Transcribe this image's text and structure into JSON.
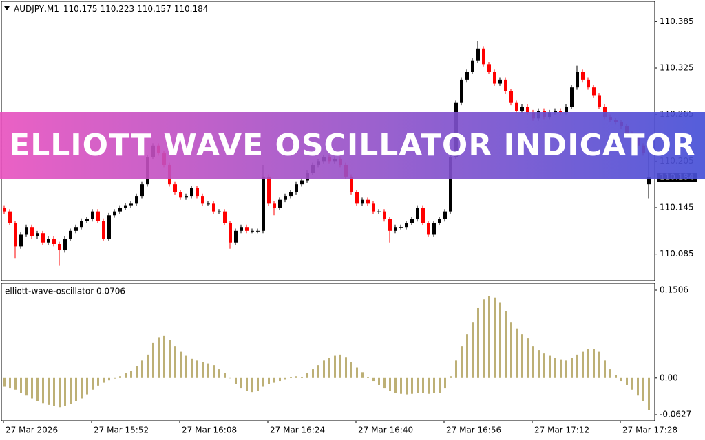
{
  "chart_data": [
    {
      "type": "candlestick",
      "title": "AUDJPY,M1",
      "open": [
        110.145,
        110.14,
        110.125,
        110.095,
        110.11,
        110.12,
        110.108,
        110.112,
        110.1,
        110.105,
        110.098,
        110.09,
        110.105,
        110.115,
        110.12,
        110.128,
        110.13,
        110.14,
        110.128,
        110.105,
        110.135,
        110.14,
        110.145,
        110.148,
        110.15,
        110.16,
        110.175,
        110.21,
        110.225,
        110.215,
        110.2,
        110.175,
        110.165,
        110.158,
        110.16,
        110.17,
        110.16,
        110.15,
        110.15,
        110.14,
        110.14,
        110.125,
        110.1,
        110.115,
        110.12,
        110.115,
        110.115,
        110.115,
        110.185,
        110.15,
        110.145,
        110.155,
        110.16,
        110.165,
        110.175,
        110.18,
        110.19,
        110.2,
        110.205,
        110.21,
        110.205,
        110.208,
        110.2,
        110.185,
        110.165,
        110.15,
        110.155,
        110.15,
        110.14,
        110.14,
        110.13,
        110.115,
        110.12,
        110.12,
        110.125,
        110.13,
        110.145,
        110.125,
        110.11,
        110.125,
        110.13,
        110.14,
        110.21,
        110.28,
        110.31,
        110.32,
        110.335,
        110.35,
        110.33,
        110.32,
        110.305,
        110.31,
        110.295,
        110.28,
        110.27,
        110.275,
        110.268,
        110.26,
        110.27,
        110.262,
        110.268,
        110.27,
        110.268,
        110.275,
        110.3,
        110.32,
        110.31,
        110.3,
        110.29,
        110.275,
        110.262,
        110.258,
        110.255,
        110.25,
        110.24,
        110.235,
        110.225,
        110.175
      ],
      "high": [
        110.148,
        110.143,
        110.128,
        110.113,
        110.123,
        110.123,
        110.115,
        110.115,
        110.108,
        110.108,
        110.101,
        110.108,
        110.118,
        110.123,
        110.131,
        110.133,
        110.143,
        110.143,
        110.131,
        110.138,
        110.143,
        110.148,
        110.151,
        110.153,
        110.163,
        110.178,
        110.213,
        110.228,
        110.228,
        110.218,
        110.203,
        110.178,
        110.168,
        110.163,
        110.173,
        110.173,
        110.163,
        110.153,
        110.153,
        110.143,
        110.143,
        110.128,
        110.118,
        110.123,
        110.123,
        110.118,
        110.118,
        110.2,
        110.188,
        110.153,
        110.158,
        110.163,
        110.168,
        110.178,
        110.183,
        110.193,
        110.203,
        110.208,
        110.213,
        110.213,
        110.211,
        110.211,
        110.203,
        110.188,
        110.168,
        110.158,
        110.158,
        110.153,
        110.143,
        110.143,
        110.133,
        110.123,
        110.123,
        110.128,
        110.133,
        110.148,
        110.148,
        110.128,
        110.128,
        110.133,
        110.143,
        110.213,
        110.283,
        110.313,
        110.323,
        110.338,
        110.36,
        110.353,
        110.333,
        110.323,
        110.313,
        110.313,
        110.298,
        110.283,
        110.278,
        110.278,
        110.271,
        110.273,
        110.273,
        110.271,
        110.273,
        110.273,
        110.278,
        110.303,
        110.328,
        110.323,
        110.313,
        110.303,
        110.293,
        110.278,
        110.265,
        110.261,
        110.258,
        110.253,
        110.243,
        110.238,
        110.228,
        110.223
      ],
      "low": [
        110.137,
        110.122,
        110.08,
        110.092,
        110.107,
        110.105,
        110.105,
        110.097,
        110.097,
        110.095,
        110.07,
        110.087,
        110.102,
        110.112,
        110.117,
        110.125,
        110.127,
        110.125,
        110.102,
        110.102,
        110.132,
        110.137,
        110.142,
        110.145,
        110.147,
        110.157,
        110.172,
        110.207,
        110.212,
        110.197,
        110.172,
        110.162,
        110.155,
        110.155,
        110.157,
        110.157,
        110.147,
        110.147,
        110.137,
        110.137,
        110.122,
        110.092,
        110.097,
        110.112,
        110.112,
        110.112,
        110.112,
        110.112,
        110.147,
        110.135,
        110.142,
        110.152,
        110.157,
        110.162,
        110.172,
        110.177,
        110.187,
        110.197,
        110.202,
        110.202,
        110.202,
        110.197,
        110.182,
        110.162,
        110.147,
        110.147,
        110.147,
        110.137,
        110.137,
        110.127,
        110.1,
        110.112,
        110.117,
        110.117,
        110.122,
        110.127,
        110.122,
        110.107,
        110.107,
        110.122,
        110.127,
        110.137,
        110.207,
        110.277,
        110.307,
        110.317,
        110.332,
        110.327,
        110.317,
        110.302,
        110.302,
        110.292,
        110.277,
        110.267,
        110.267,
        110.265,
        110.257,
        110.257,
        110.259,
        110.259,
        110.265,
        110.265,
        110.265,
        110.272,
        110.297,
        110.307,
        110.297,
        110.287,
        110.272,
        110.259,
        110.255,
        110.252,
        110.247,
        110.237,
        110.232,
        110.222,
        110.212,
        110.157
      ],
      "close": [
        110.14,
        110.125,
        110.095,
        110.11,
        110.12,
        110.108,
        110.112,
        110.1,
        110.105,
        110.098,
        110.09,
        110.105,
        110.115,
        110.12,
        110.128,
        110.13,
        110.14,
        110.128,
        110.105,
        110.135,
        110.14,
        110.145,
        110.148,
        110.15,
        110.16,
        110.175,
        110.21,
        110.225,
        110.215,
        110.2,
        110.175,
        110.165,
        110.158,
        110.16,
        110.17,
        110.16,
        110.15,
        110.15,
        110.14,
        110.14,
        110.125,
        110.1,
        110.115,
        110.12,
        110.115,
        110.115,
        110.115,
        110.185,
        110.15,
        110.145,
        110.155,
        110.16,
        110.165,
        110.175,
        110.18,
        110.19,
        110.2,
        110.205,
        110.21,
        110.205,
        110.208,
        110.2,
        110.185,
        110.165,
        110.15,
        110.155,
        110.15,
        110.14,
        110.14,
        110.13,
        110.115,
        110.12,
        110.12,
        110.125,
        110.13,
        110.145,
        110.125,
        110.11,
        110.125,
        110.13,
        110.14,
        110.21,
        110.28,
        110.31,
        110.32,
        110.335,
        110.35,
        110.33,
        110.32,
        110.305,
        110.31,
        110.295,
        110.28,
        110.27,
        110.275,
        110.268,
        110.26,
        110.27,
        110.262,
        110.268,
        110.27,
        110.268,
        110.275,
        110.3,
        110.32,
        110.31,
        110.3,
        110.29,
        110.275,
        110.262,
        110.258,
        110.255,
        110.25,
        110.24,
        110.235,
        110.225,
        110.215,
        110.184
      ],
      "up_color": "#000000",
      "down_color": "#ff0000",
      "ylim": [
        110.051,
        110.411
      ],
      "yticks": [
        110.385,
        110.325,
        110.265,
        110.205,
        110.145,
        110.085
      ]
    },
    {
      "type": "bar",
      "title": "elliott-wave-oscillator 0.0706",
      "color": "#bdb076",
      "values": [
        -0.015,
        -0.018,
        -0.02,
        -0.025,
        -0.03,
        -0.035,
        -0.04,
        -0.043,
        -0.046,
        -0.048,
        -0.05,
        -0.048,
        -0.045,
        -0.04,
        -0.035,
        -0.028,
        -0.02,
        -0.013,
        -0.008,
        -0.004,
        -0.001,
        0.003,
        0.008,
        0.012,
        0.02,
        0.03,
        0.04,
        0.06,
        0.07,
        0.073,
        0.065,
        0.055,
        0.045,
        0.038,
        0.033,
        0.03,
        0.028,
        0.025,
        0.022,
        0.015,
        0.008,
        0.0,
        -0.01,
        -0.018,
        -0.022,
        -0.024,
        -0.022,
        -0.015,
        -0.01,
        -0.008,
        -0.005,
        -0.002,
        0.002,
        0.003,
        0.002,
        0.008,
        0.015,
        0.022,
        0.03,
        0.035,
        0.038,
        0.04,
        0.036,
        0.028,
        0.018,
        0.01,
        0.002,
        -0.005,
        -0.012,
        -0.018,
        -0.022,
        -0.025,
        -0.027,
        -0.028,
        -0.027,
        -0.025,
        -0.026,
        -0.027,
        -0.026,
        -0.025,
        -0.018,
        0.003,
        0.03,
        0.055,
        0.075,
        0.095,
        0.12,
        0.135,
        0.14,
        0.138,
        0.13,
        0.115,
        0.095,
        0.085,
        0.075,
        0.068,
        0.055,
        0.048,
        0.042,
        0.038,
        0.035,
        0.032,
        0.03,
        0.035,
        0.04,
        0.045,
        0.05,
        0.05,
        0.045,
        0.03,
        0.015,
        0.005,
        -0.005,
        -0.012,
        -0.02,
        -0.03,
        -0.04,
        -0.055
      ],
      "ylim": [
        -0.0733,
        0.1624
      ],
      "yticks": [
        0.1506,
        {
          "value": 0,
          "label": "0.00"
        },
        -0.0627
      ],
      "x_labels": [
        "27 Mar 2026",
        "27 Mar 15:52",
        "27 Mar 16:08",
        "27 Mar 16:24",
        "27 Mar 16:40",
        "27 Mar 16:56",
        "27 Mar 17:12",
        "27 Mar 17:28"
      ]
    }
  ],
  "banner": {
    "title": "ELLIOTT WAVE OSCILLATOR INDICATOR"
  }
}
